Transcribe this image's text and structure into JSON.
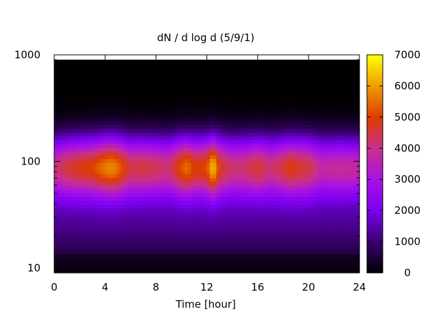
{
  "chart_data": {
    "type": "heatmap",
    "title": "dN / d log d (5/9/1)",
    "xlabel": "Time [hour]",
    "ylabel": "",
    "xlim": [
      0,
      24
    ],
    "ylim": [
      9,
      1000
    ],
    "y_scale": "log",
    "x_ticks": [
      "0",
      "4",
      "8",
      "12",
      "16",
      "20",
      "24"
    ],
    "y_ticks": [
      "10",
      "100",
      "1000"
    ],
    "colorbar": {
      "range": [
        0,
        7000
      ],
      "ticks": [
        "0",
        "1000",
        "2000",
        "3000",
        "4000",
        "5000",
        "6000",
        "7000"
      ],
      "palette": [
        "#000000",
        "#3a006e",
        "#7a00ee",
        "#a811e8",
        "#c8308c",
        "#dd3c00",
        "#ee9b00",
        "#ffff00"
      ]
    },
    "data_range_diameter": [
      9,
      900
    ],
    "peak_diameter": 90,
    "intensity_profile": {
      "time": [
        0,
        1,
        2,
        3,
        4,
        4.5,
        5,
        6,
        7,
        8,
        9,
        10,
        10.5,
        11,
        12,
        12.5,
        13,
        14,
        15,
        16,
        17,
        18,
        18.5,
        19,
        20,
        21,
        22,
        23,
        24
      ],
      "peak_value": [
        3800,
        4300,
        4600,
        4800,
        5400,
        5600,
        5300,
        4200,
        4300,
        4100,
        3900,
        5000,
        5300,
        4700,
        4900,
        6200,
        4600,
        3900,
        4000,
        4400,
        3900,
        4300,
        4700,
        4500,
        4300,
        3500,
        3600,
        3600,
        3500
      ]
    }
  }
}
